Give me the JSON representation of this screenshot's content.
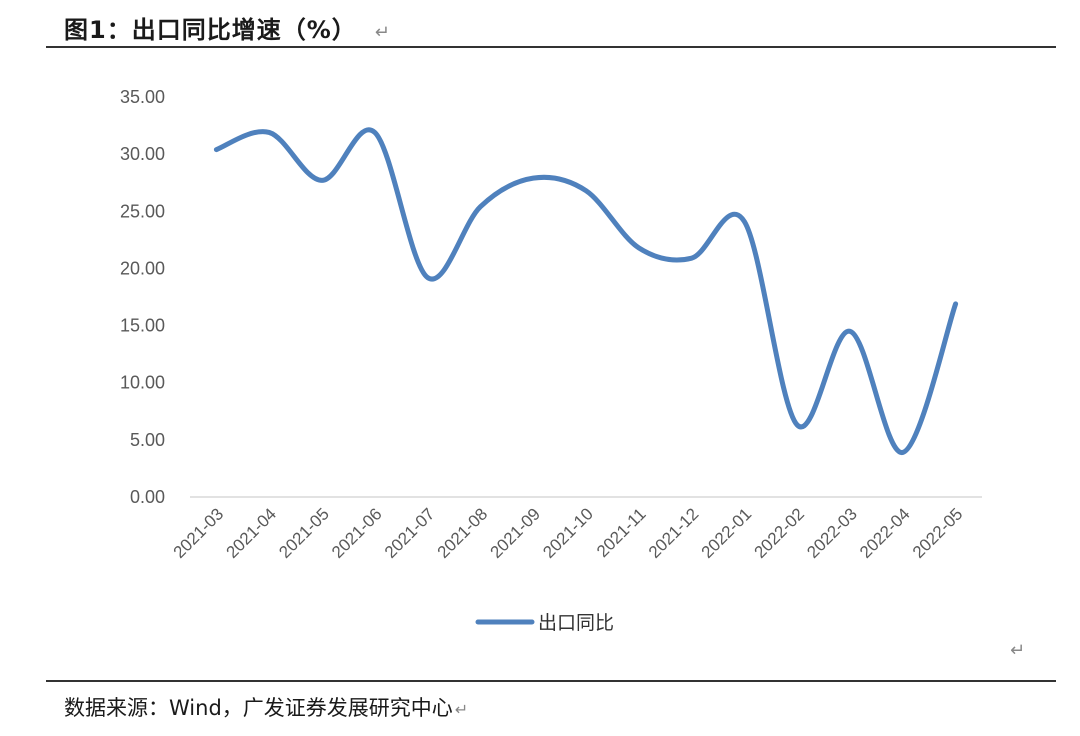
{
  "figure": {
    "title": "图1：出口同比增速（%）",
    "para_mark": "↵",
    "source": "数据来源：Wind，广发证券发展研究中心"
  },
  "chart_data": {
    "type": "line",
    "title": "",
    "xlabel": "",
    "ylabel": "",
    "ylim": [
      0,
      35
    ],
    "yticks": [
      0,
      5,
      10,
      15,
      20,
      25,
      30,
      35
    ],
    "ytick_labels": [
      "0.00",
      "5.00",
      "10.00",
      "15.00",
      "20.00",
      "25.00",
      "30.00",
      "35.00"
    ],
    "categories": [
      "2021-03",
      "2021-04",
      "2021-05",
      "2021-06",
      "2021-07",
      "2021-08",
      "2021-09",
      "2021-10",
      "2021-11",
      "2021-12",
      "2022-01",
      "2022-02",
      "2022-03",
      "2022-04",
      "2022-05"
    ],
    "series": [
      {
        "name": "出口同比",
        "color": "#4f81bd",
        "smooth": true,
        "values": [
          30.4,
          31.9,
          27.7,
          31.9,
          19.2,
          25.4,
          27.9,
          26.8,
          21.8,
          20.9,
          24.1,
          6.3,
          14.5,
          3.9,
          16.9
        ]
      }
    ],
    "grid": false,
    "legend_position": "bottom-center"
  }
}
